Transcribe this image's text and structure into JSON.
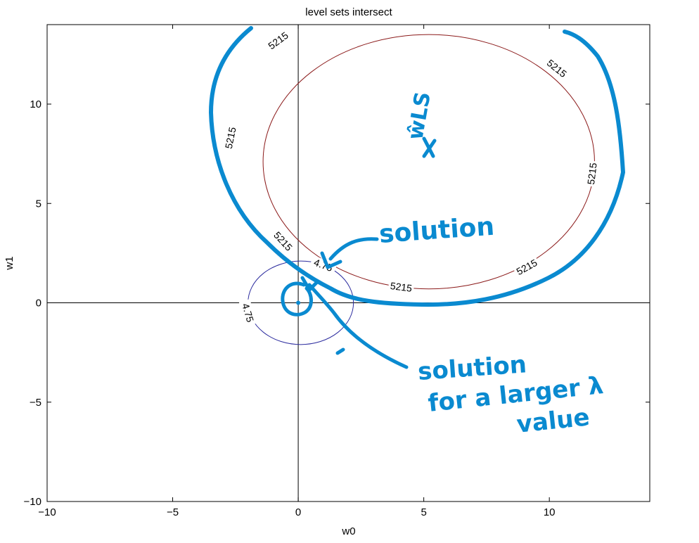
{
  "chart_data": {
    "type": "contour",
    "title": "level sets intersect",
    "xlabel": "w0",
    "ylabel": "w1",
    "xlim": [
      -10,
      14
    ],
    "ylim": [
      -10,
      14
    ],
    "xticks": [
      -10,
      -5,
      0,
      5,
      10
    ],
    "yticks": [
      -10,
      -5,
      0,
      5,
      10
    ],
    "xtick_labels": [
      "−10",
      "−5",
      "0",
      "5",
      "10"
    ],
    "ytick_labels": [
      "−10",
      "−5",
      "0",
      "5",
      "10"
    ],
    "colors": {
      "blue_contour": "#2b2b9e",
      "red_contour": "#8b1a1a",
      "ink": "#0a8ad0"
    },
    "contours": [
      {
        "level_label": "5215",
        "color": "#8b1a1a",
        "center": [
          5.2,
          7.1
        ],
        "radii": [
          6.6,
          6.4
        ],
        "rotation_deg": 0,
        "label_points": [
          [
            -0.8,
            13.2
          ],
          [
            10.3,
            11.8
          ],
          [
            -2.7,
            8.3
          ],
          [
            11.7,
            6.5
          ],
          [
            -0.6,
            3.1
          ],
          [
            9.1,
            1.8
          ],
          [
            4.1,
            0.8
          ]
        ]
      },
      {
        "level_label": "4.75",
        "color": "#2b2b9e",
        "center": [
          0.1,
          0.0
        ],
        "radii": [
          2.1,
          2.1
        ],
        "rotation_deg": 0,
        "label_points": [
          [
            1.0,
            1.9
          ],
          [
            -2.0,
            -0.5
          ]
        ]
      }
    ],
    "annotations": {
      "wls": "ŵLS",
      "solution": "solution",
      "solution_larger_1": "solution",
      "solution_larger_2": "for a larger λ",
      "solution_larger_3": "value"
    }
  }
}
